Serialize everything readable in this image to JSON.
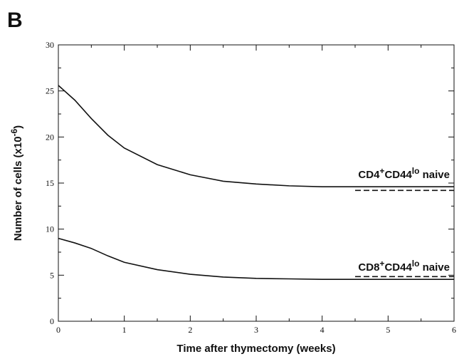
{
  "chart_data": {
    "type": "line",
    "panel_label": "B",
    "x_label": "Time after thymectomy (weeks)",
    "y_label": [
      {
        "text": "Number of cells (x10"
      },
      {
        "text": "-6",
        "sup": true
      },
      {
        "text": ")"
      }
    ],
    "xlim": [
      0,
      6
    ],
    "xticks": [
      0,
      1,
      2,
      3,
      4,
      5,
      6
    ],
    "xminorticks": [
      0.5,
      1.5,
      2.5,
      3.5,
      4.5,
      5.5
    ],
    "ylim": [
      0,
      30
    ],
    "yticks": [
      0,
      5,
      10,
      15,
      20,
      25,
      30
    ],
    "yminorticks": [
      2.5,
      7.5,
      12.5,
      17.5,
      22.5,
      27.5
    ],
    "series": [
      {
        "color": "#111111",
        "style": "solid",
        "x": [
          0,
          0.25,
          0.5,
          0.75,
          1,
          1.5,
          2,
          2.5,
          3,
          3.5,
          4,
          4.5,
          5,
          5.5,
          6
        ],
        "values": [
          25.6,
          24.0,
          22.0,
          20.2,
          18.8,
          17.0,
          15.9,
          15.2,
          14.9,
          14.7,
          14.6,
          14.6,
          14.6,
          14.6,
          14.6
        ]
      },
      {
        "color": "#111111",
        "style": "solid",
        "x": [
          0,
          0.25,
          0.5,
          0.75,
          1,
          1.5,
          2,
          2.5,
          3,
          3.5,
          4,
          4.5,
          5,
          5.5,
          6
        ],
        "values": [
          9.0,
          8.5,
          7.9,
          7.1,
          6.4,
          5.6,
          5.1,
          4.8,
          4.65,
          4.6,
          4.55,
          4.55,
          4.55,
          4.55,
          4.55
        ]
      },
      {
        "color": "#111111",
        "style": "dashed",
        "x": [
          4.5,
          6
        ],
        "values": [
          14.2,
          14.2
        ]
      },
      {
        "color": "#111111",
        "style": "dashed",
        "x": [
          4.5,
          6
        ],
        "values": [
          4.85,
          4.85
        ]
      }
    ],
    "annotations": [
      [
        {
          "text": "CD4"
        },
        {
          "text": "+",
          "sup": true
        },
        {
          "text": "CD44"
        },
        {
          "text": "lo",
          "sup": true
        },
        {
          "text": " naive"
        }
      ],
      [
        {
          "text": "CD8"
        },
        {
          "text": "+",
          "sup": true
        },
        {
          "text": "CD44"
        },
        {
          "text": "lo",
          "sup": true
        },
        {
          "text": " naive"
        }
      ]
    ]
  }
}
